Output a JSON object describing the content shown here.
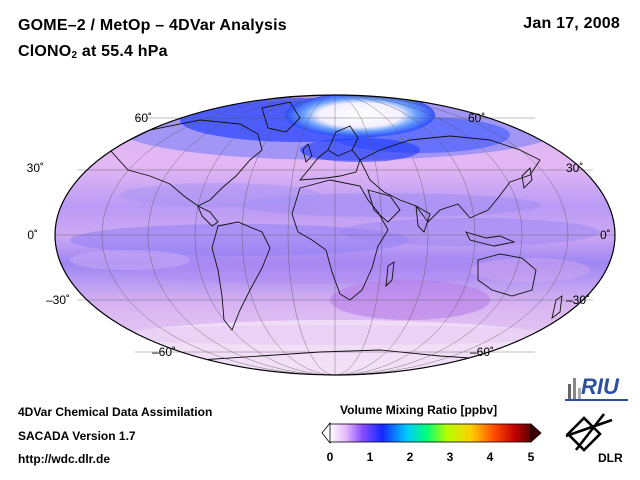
{
  "header": {
    "title_line1": "GOME–2 / MetOp – 4DVar Analysis",
    "title_line2_main": "ClONO",
    "title_line2_sub": "2",
    "title_line2_rest": " at 55.4 hPa",
    "date": "Jan 17, 2008"
  },
  "map": {
    "projection": "mollweide",
    "lat_labels_left": [
      "60˚",
      "30˚",
      "0˚",
      "–30˚",
      "–60˚"
    ],
    "lat_labels_right": [
      "60˚",
      "30˚",
      "0˚",
      "–30˚",
      "–60˚"
    ],
    "graticule_lat_step": 30,
    "graticule_lon_step": 30
  },
  "footer": {
    "line1": "4DVar Chemical Data Assimilation",
    "line2": "SACADA Version 1.7",
    "line3": "http://wdc.dlr.de"
  },
  "colorbar": {
    "title": "Volume Mixing Ratio [ppbv]",
    "ticks": [
      "0",
      "1",
      "2",
      "3",
      "4",
      "5"
    ],
    "colors": [
      "#ffffff",
      "#e6b8ff",
      "#8a4dff",
      "#1428ff",
      "#00c8ff",
      "#00ff7a",
      "#b4ff00",
      "#ffd000",
      "#ff4a00",
      "#c00000",
      "#5a0000"
    ]
  },
  "logos": {
    "riu": "RIU",
    "dlr": "DLR"
  }
}
